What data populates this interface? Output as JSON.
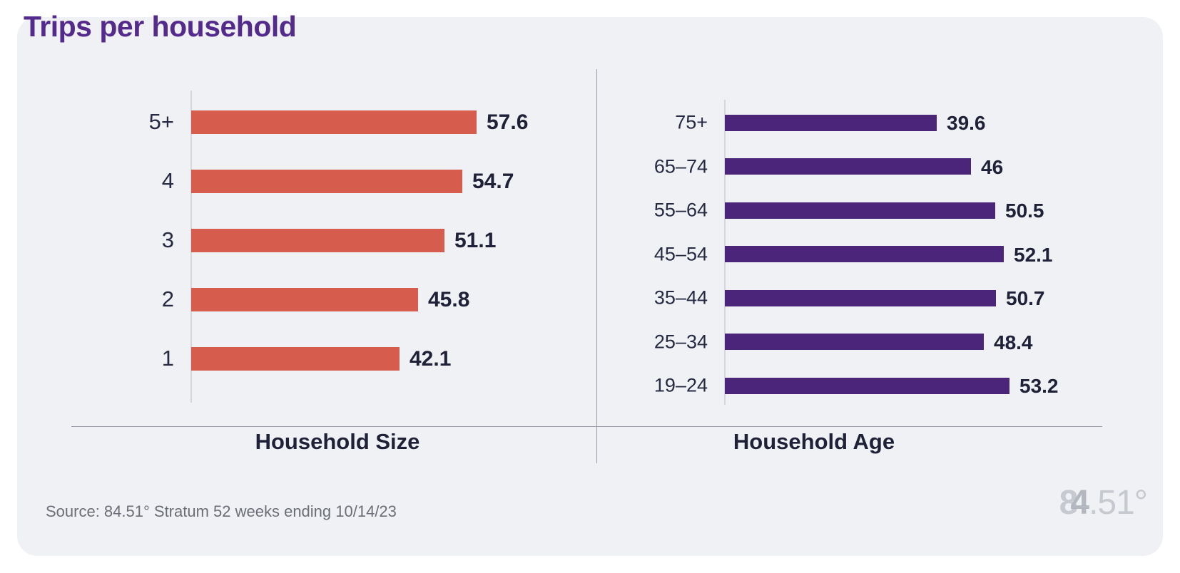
{
  "page_title": "Trips per household",
  "source_note": "Source: 84.51° Stratum 52 weeks ending 10/14/23",
  "logo": {
    "part1": "8",
    "part2": "4",
    "part3": ".51°"
  },
  "colors": {
    "card_bg": "#f0f1f4",
    "title": "#542b8c",
    "bar_household_size": "#d65c4d",
    "bar_household_age": "#4b2579",
    "category_label": "#262a43",
    "value_label": "#1f2138",
    "divider_line": "#9b9caa",
    "axis_line": "#d5d6db",
    "source_text": "#6b6e76",
    "logo_text": "#c6c9d0"
  },
  "chart_data": [
    {
      "type": "bar",
      "orientation": "horizontal",
      "title": "Household Size",
      "categories": [
        "5+",
        "4",
        "3",
        "2",
        "1"
      ],
      "values": [
        57.6,
        54.7,
        51.1,
        45.8,
        42.1
      ],
      "value_labels": [
        "57.6",
        "54.7",
        "51.1",
        "45.8",
        "42.1"
      ],
      "bar_color": "#d65c4d",
      "xlim": [
        0,
        60
      ],
      "grid": "off",
      "legend": "none"
    },
    {
      "type": "bar",
      "orientation": "horizontal",
      "title": "Household Age",
      "categories": [
        "75+",
        "65–74",
        "55–64",
        "45–54",
        "35–44",
        "25–34",
        "19–24"
      ],
      "values": [
        39.6,
        46,
        50.5,
        52.1,
        50.7,
        48.4,
        53.2
      ],
      "value_labels": [
        "39.6",
        "46",
        "50.5",
        "52.1",
        "50.7",
        "48.4",
        "53.2"
      ],
      "bar_color": "#4b2579",
      "xlim": [
        0,
        57
      ],
      "grid": "off",
      "legend": "none"
    }
  ]
}
